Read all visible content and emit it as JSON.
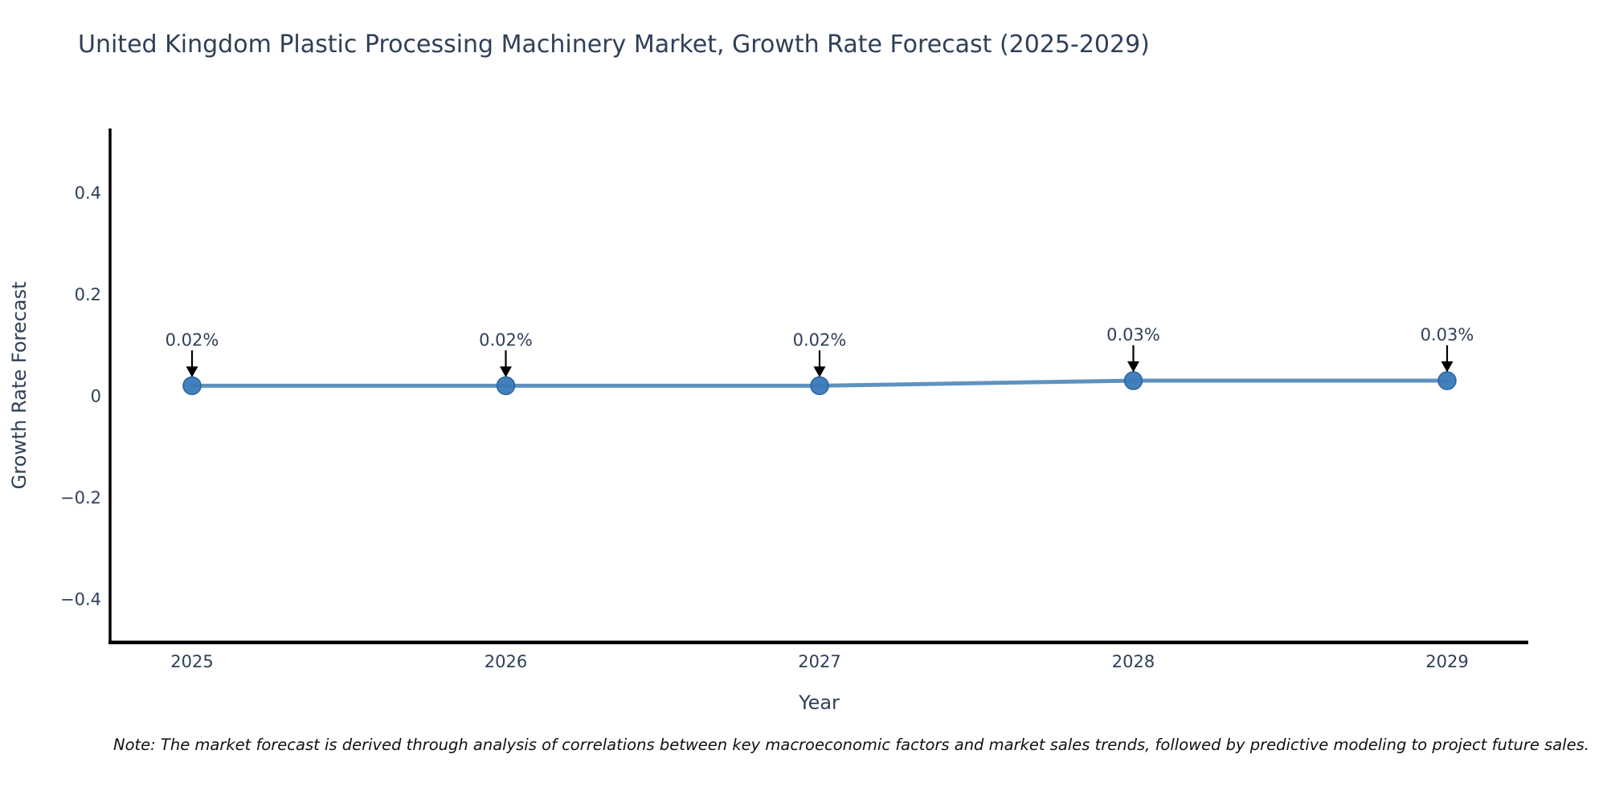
{
  "chart_data": {
    "type": "line",
    "title": "United Kingdom Plastic Processing Machinery Market, Growth Rate Forecast (2025-2029)",
    "xlabel": "Year",
    "ylabel": "Growth Rate Forecast",
    "categories": [
      "2025",
      "2026",
      "2027",
      "2028",
      "2029"
    ],
    "x": [
      2025,
      2026,
      2027,
      2028,
      2029
    ],
    "values": [
      0.02,
      0.02,
      0.02,
      0.03,
      0.03
    ],
    "point_labels": [
      "0.02%",
      "0.02%",
      "0.02%",
      "0.03%",
      "0.03%"
    ],
    "y_ticks": [
      0.4,
      0.2,
      0,
      -0.2,
      -0.4
    ],
    "y_tick_labels": [
      "0.4",
      "0.2",
      "0",
      "−0.2",
      "−0.4"
    ],
    "x_tick_labels": [
      "2025",
      "2026",
      "2027",
      "2028",
      "2029"
    ],
    "ylim": [
      -0.485,
      0.527
    ],
    "grid": false,
    "legend_position": "none",
    "colors": {
      "line": "#4d86b8",
      "marker_fill": "#3a7ab8",
      "marker_edge": "#2a659c",
      "axis_spine": "#000000",
      "tick_text": "#2f4058",
      "title_text": "#2f4058",
      "annotation_text": "#2f4058",
      "annotation_arrow": "#000000",
      "background": "#ffffff"
    }
  },
  "note": {
    "text": "Note: The market forecast is derived through analysis of correlations between key macroeconomic factors and market sales trends, followed by predictive modeling to project future sales."
  }
}
